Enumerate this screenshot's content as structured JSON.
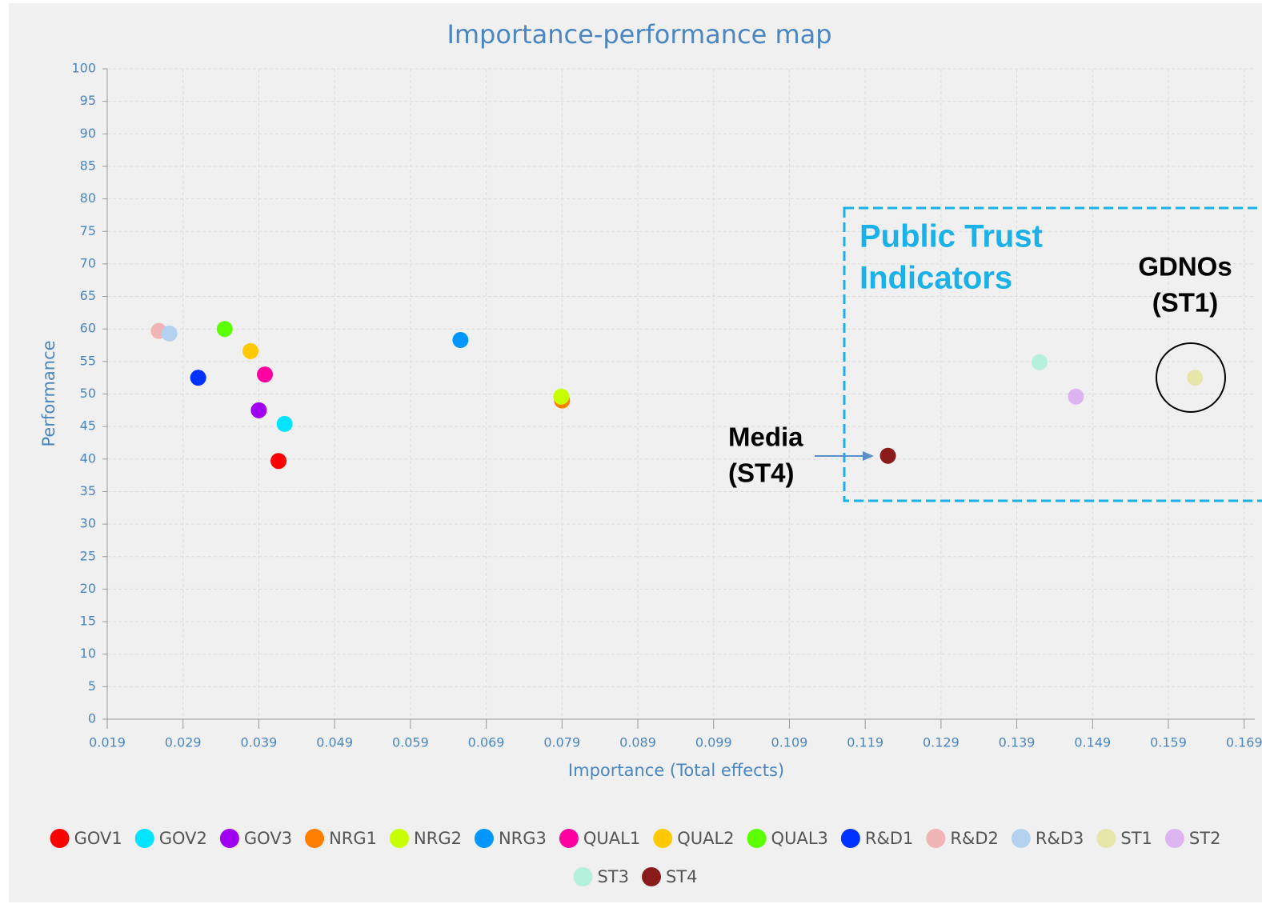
{
  "chart_data": {
    "type": "scatter",
    "title": "Importance-performance map",
    "x_label": "Importance (Total effects)",
    "y_label": "Performance",
    "xlim": [
      0.019,
      0.1704
    ],
    "xticks": [
      0.019,
      0.029,
      0.039,
      0.049,
      0.059,
      0.069,
      0.079,
      0.089,
      0.099,
      0.109,
      0.119,
      0.129,
      0.139,
      0.149,
      0.159,
      0.169
    ],
    "ylim": [
      0,
      100
    ],
    "yticks": [
      0,
      5,
      10,
      15,
      20,
      25,
      30,
      35,
      40,
      45,
      50,
      55,
      60,
      65,
      70,
      75,
      80,
      85,
      90,
      95,
      100
    ],
    "grid": true,
    "legend": "bottom",
    "series": [
      {
        "name": "GOV1",
        "color": "#ff0000",
        "x": 0.0416,
        "y": 39.7
      },
      {
        "name": "GOV2",
        "color": "#00e5ff",
        "x": 0.0424,
        "y": 45.4
      },
      {
        "name": "GOV3",
        "color": "#a000f0",
        "x": 0.039,
        "y": 47.5
      },
      {
        "name": "NRG1",
        "color": "#ff7f00",
        "x": 0.079,
        "y": 49.0
      },
      {
        "name": "NRG2",
        "color": "#c8ff00",
        "x": 0.0789,
        "y": 49.6
      },
      {
        "name": "NRG3",
        "color": "#0096ff",
        "x": 0.0656,
        "y": 58.3
      },
      {
        "name": "QUAL1",
        "color": "#ff00a0",
        "x": 0.0398,
        "y": 53.0
      },
      {
        "name": "QUAL2",
        "color": "#ffc800",
        "x": 0.0379,
        "y": 56.6
      },
      {
        "name": "QUAL3",
        "color": "#5aff00",
        "x": 0.0345,
        "y": 60.0
      },
      {
        "name": "R&D1",
        "color": "#0032ff",
        "x": 0.031,
        "y": 52.5
      },
      {
        "name": "R&D2",
        "color": "#f0b4b4",
        "x": 0.0258,
        "y": 59.7
      },
      {
        "name": "R&D3",
        "color": "#b4d2f0",
        "x": 0.0272,
        "y": 59.3
      },
      {
        "name": "ST1",
        "color": "#e6e6aa",
        "x": 0.1625,
        "y": 52.5
      },
      {
        "name": "ST2",
        "color": "#dcb4f0",
        "x": 0.1468,
        "y": 49.6
      },
      {
        "name": "ST3",
        "color": "#b4f0dc",
        "x": 0.142,
        "y": 54.9
      },
      {
        "name": "ST4",
        "color": "#8b1a1a",
        "x": 0.122,
        "y": 40.5
      }
    ],
    "annotations": [
      {
        "lines": [
          "Public Trust",
          "Indicators"
        ]
      },
      {
        "lines": [
          "GDNOs",
          "(ST1)"
        ]
      },
      {
        "lines": [
          "Media",
          "(ST4)"
        ]
      }
    ]
  }
}
